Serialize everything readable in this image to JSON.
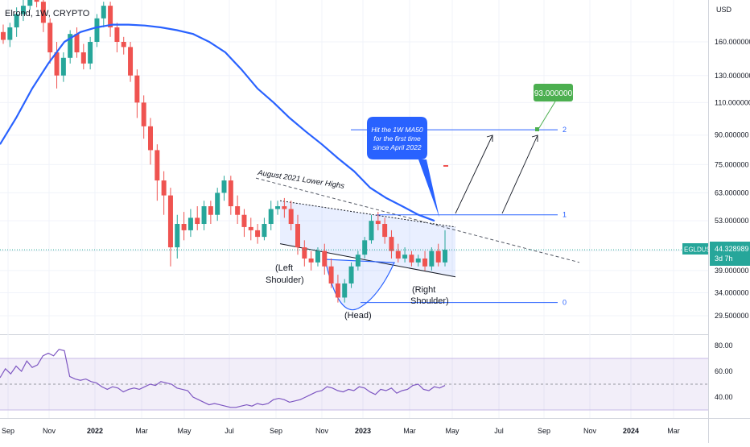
{
  "header": {
    "symbol_title": "Elrond, 1W, CRYPTO"
  },
  "price_axis": {
    "currency": "USD",
    "ticks": [
      "160.000000",
      "130.000000",
      "110.000000",
      "90.000000",
      "75.000000",
      "63.000000",
      "53.000000",
      "44.000000",
      "39.000000",
      "34.000000",
      "29.500000"
    ],
    "tick_values": [
      160,
      130,
      110,
      90,
      75,
      63,
      53,
      44,
      39,
      34,
      29.5
    ],
    "last_price": {
      "symbol": "EGLDUSD",
      "value": "44.328989",
      "countdown": "3d 7h"
    }
  },
  "time_axis": {
    "ticks": [
      "Sep",
      "Nov",
      "2022",
      "Mar",
      "May",
      "Jul",
      "Sep",
      "Nov",
      "2023",
      "Mar",
      "May",
      "Jul",
      "Sep",
      "Nov",
      "2024",
      "Mar"
    ]
  },
  "rsi": {
    "ticks": [
      "80.00",
      "60.00",
      "40.00"
    ],
    "tick_values": [
      80,
      60,
      40
    ],
    "band": [
      30,
      70
    ],
    "midline": 50
  },
  "colors": {
    "up": "#26a69a",
    "down": "#ef5350",
    "ma": "#2962ff",
    "fib": "#2962ff",
    "rsi": "#7e57c2",
    "target": "#4caf50"
  },
  "annotations": {
    "trendline_label": "August 2021 Lower Highs",
    "callout": {
      "line1": "Hit the 1W MA50",
      "line2": "for the first time",
      "line3": "since April 2022"
    },
    "left_shoulder": {
      "line1": "(Left",
      "line2": "Shoulder)"
    },
    "head": "(Head)",
    "right_shoulder": {
      "line1": "(Right",
      "line2": "Shoulder)"
    },
    "target_label": "93.000000",
    "fib_levels": [
      {
        "label": "2",
        "price": 93
      },
      {
        "label": "1",
        "price": 55
      },
      {
        "label": "0",
        "price": 32
      }
    ]
  },
  "chart_data": {
    "type": "candlestick",
    "title": "Elrond, 1W, CRYPTO",
    "timeframe": "1W",
    "log_scale": true,
    "candles": [
      [
        170,
        162,
        178,
        158
      ],
      [
        162,
        175,
        180,
        155
      ],
      [
        175,
        190,
        198,
        165
      ],
      [
        190,
        200,
        210,
        182
      ],
      [
        200,
        215,
        222,
        195
      ],
      [
        215,
        205,
        225,
        198
      ],
      [
        205,
        180,
        210,
        170
      ],
      [
        180,
        150,
        185,
        140
      ],
      [
        150,
        130,
        160,
        120
      ],
      [
        130,
        145,
        150,
        125
      ],
      [
        145,
        168,
        172,
        140
      ],
      [
        168,
        150,
        175,
        145
      ],
      [
        150,
        140,
        158,
        135
      ],
      [
        140,
        160,
        165,
        135
      ],
      [
        160,
        185,
        190,
        155
      ],
      [
        185,
        200,
        205,
        175
      ],
      [
        200,
        175,
        205,
        165
      ],
      [
        175,
        160,
        180,
        150
      ],
      [
        160,
        155,
        165,
        148
      ],
      [
        155,
        130,
        160,
        125
      ],
      [
        130,
        110,
        135,
        100
      ],
      [
        110,
        95,
        115,
        88
      ],
      [
        95,
        82,
        100,
        75
      ],
      [
        82,
        68,
        85,
        60
      ],
      [
        68,
        62,
        72,
        55
      ],
      [
        62,
        45,
        65,
        40
      ],
      [
        45,
        52,
        55,
        42
      ],
      [
        52,
        50,
        56,
        47
      ],
      [
        50,
        54,
        57,
        48
      ],
      [
        54,
        52,
        58,
        50
      ],
      [
        52,
        58,
        60,
        50
      ],
      [
        58,
        55,
        60,
        52
      ],
      [
        55,
        63,
        65,
        53
      ],
      [
        63,
        68,
        70,
        60
      ],
      [
        68,
        58,
        70,
        55
      ],
      [
        58,
        55,
        62,
        52
      ],
      [
        55,
        51,
        57,
        48
      ],
      [
        51,
        50,
        54,
        47
      ],
      [
        50,
        48,
        52,
        46
      ],
      [
        48,
        52,
        54,
        47
      ],
      [
        52,
        57,
        60,
        50
      ],
      [
        57,
        58,
        60,
        55
      ],
      [
        58,
        57,
        61,
        54
      ],
      [
        57,
        52,
        60,
        50
      ],
      [
        52,
        45,
        55,
        43
      ],
      [
        45,
        42,
        47,
        40
      ],
      [
        42,
        41,
        44,
        39
      ],
      [
        41,
        44,
        45,
        40
      ],
      [
        44,
        40,
        46,
        38
      ],
      [
        40,
        36,
        42,
        35
      ],
      [
        36,
        33,
        38,
        32
      ],
      [
        33,
        36,
        37,
        32
      ],
      [
        36,
        40,
        41,
        35
      ],
      [
        40,
        43,
        44,
        39
      ],
      [
        43,
        47,
        48,
        42
      ],
      [
        47,
        53,
        55,
        46
      ],
      [
        53,
        52,
        56,
        50
      ],
      [
        52,
        48,
        54,
        46
      ],
      [
        48,
        44,
        50,
        42
      ],
      [
        44,
        42,
        46,
        41
      ],
      [
        42,
        43,
        45,
        41
      ],
      [
        43,
        41,
        44,
        40
      ],
      [
        41,
        42,
        43,
        40
      ],
      [
        42,
        40,
        44,
        39
      ],
      [
        40,
        44,
        45,
        39
      ],
      [
        44,
        41,
        46,
        40
      ],
      [
        41,
        44.33,
        50,
        40
      ]
    ],
    "moving_average": {
      "name": "1W MA50",
      "x": [
        0,
        20,
        40,
        60,
        80,
        100,
        120,
        140,
        160,
        180,
        200,
        220,
        240,
        260,
        280,
        300,
        320,
        340,
        360,
        380,
        400,
        420,
        440,
        460,
        480,
        500,
        520,
        540
      ],
      "price": [
        85,
        100,
        120,
        140,
        160,
        170,
        175,
        178,
        178,
        177,
        175,
        172,
        168,
        160,
        150,
        135,
        120,
        110,
        100,
        92,
        85,
        78,
        72,
        65,
        61,
        58,
        55,
        53
      ]
    },
    "trendlines": [
      {
        "name": "August 2021 Lower Highs",
        "price_from": 69,
        "price_to": 41
      },
      {
        "name": "channel top",
        "price_from": 60,
        "price_to": 51
      },
      {
        "name": "channel bottom",
        "price_from": 46,
        "price_to": 37.5
      }
    ],
    "target": 93,
    "rsi_values": [
      55,
      62,
      58,
      64,
      60,
      68,
      63,
      65,
      72,
      74,
      72,
      77,
      76,
      56,
      54,
      53,
      54,
      52,
      51,
      48,
      46,
      48,
      47,
      44,
      46,
      47,
      46,
      48,
      50,
      49,
      52,
      51,
      50,
      47,
      46,
      45,
      40,
      38,
      36,
      34,
      35,
      34,
      33,
      32,
      32,
      33,
      34,
      33,
      35,
      34,
      35,
      38,
      39,
      38,
      36,
      37,
      38,
      40,
      42,
      44,
      45,
      48,
      47,
      45,
      44,
      46,
      45,
      48,
      47,
      44,
      42,
      46,
      45,
      47,
      43,
      45,
      46,
      49,
      50,
      46,
      45,
      48,
      47,
      49
    ]
  }
}
